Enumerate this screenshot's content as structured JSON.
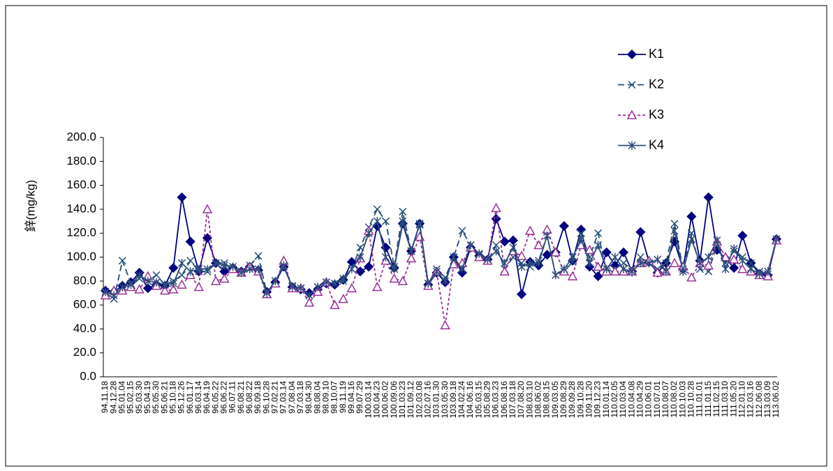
{
  "chart_data": {
    "type": "line",
    "y_label": "鋅(mg/kg)",
    "categories": [
      "94.11.18",
      "94.12.28",
      "95.01.04",
      "95.02.15",
      "95.03.30",
      "95.04.19",
      "95.05.30",
      "95.06.21",
      "95.10.18",
      "95.12.26",
      "96.01.17",
      "96.03.14",
      "96.04.19",
      "96.05.22",
      "96.06.22",
      "96.07.11",
      "96.08.21",
      "96.08.22",
      "96.09.18",
      "96.10.28",
      "97.02.21",
      "97.03.14",
      "97.08.04",
      "97.03.18",
      "98.04.30",
      "98.08.04",
      "98.09.10",
      "98.10.07",
      "98.11.19",
      "99.04.16",
      "99.07.29",
      "100.03.14",
      "100.04.23",
      "100.06.02",
      "100.09.06",
      "101.03.23",
      "101.09.12",
      "102.03.08",
      "102.07.16",
      "103.01.30",
      "103.05.30",
      "103.09.18",
      "104.02.24",
      "104.06.16",
      "105.03.15",
      "105.08.29",
      "106.03.23",
      "106.08.16",
      "107.03.18",
      "107.08.20",
      "108.03.10",
      "108.06.02",
      "108.08.15",
      "109.03.05",
      "109.08.29",
      "109.09.28",
      "109.10.28",
      "109.11.20",
      "109.12.23",
      "110.01.14",
      "110.02.05",
      "110.03.04",
      "110.04.08",
      "110.04.29",
      "110.06.01",
      "110.07.01",
      "110.08.07",
      "110.08.02",
      "110.10.03",
      "110.10.28",
      "111.01.01",
      "111.01.15",
      "111.02.15",
      "111.03.10",
      "111.05.20",
      "112.01.10",
      "112.03.16",
      "112.06.08",
      "113.03.09",
      "113.06.02"
    ],
    "series": [
      {
        "name": "K1",
        "color": "#000080",
        "marker": "diamond",
        "dash": "solid",
        "values": [
          72,
          71,
          76,
          79,
          87,
          74,
          77,
          76,
          91,
          150,
          113,
          88,
          116,
          95,
          88,
          91,
          88,
          92,
          89,
          71,
          79,
          92,
          75,
          73,
          70,
          73,
          78,
          77,
          81,
          96,
          88,
          92,
          126,
          108,
          91,
          128,
          105,
          128,
          77,
          87,
          79,
          100,
          87,
          108,
          101,
          98,
          132,
          113,
          114,
          69,
          96,
          93,
          102,
          104,
          126,
          97,
          123,
          92,
          84,
          104,
          93,
          104,
          88,
          121,
          96,
          87,
          95,
          113,
          90,
          134,
          97,
          150,
          106,
          99,
          91,
          118,
          95,
          86,
          85,
          115
        ]
      },
      {
        "name": "K2",
        "color": "#1f4e79",
        "marker": "x",
        "dash": "long",
        "values": [
          70,
          65,
          97,
          78,
          82,
          80,
          85,
          77,
          80,
          85,
          97,
          88,
          88,
          95,
          95,
          90,
          88,
          93,
          101,
          70,
          80,
          92,
          76,
          74,
          68,
          75,
          79,
          78,
          80,
          90,
          108,
          125,
          140,
          130,
          92,
          138,
          105,
          127,
          78,
          90,
          83,
          100,
          122,
          110,
          102,
          97,
          110,
          90,
          100,
          95,
          92,
          97,
          118,
          85,
          88,
          96,
          120,
          100,
          120,
          88,
          90,
          95,
          90,
          100,
          95,
          90,
          95,
          128,
          90,
          120,
          90,
          88,
          110,
          95,
          105,
          100,
          95,
          88,
          86,
          115
        ]
      },
      {
        "name": "K3",
        "color": "#993399",
        "marker": "triangle",
        "dash": "short",
        "values": [
          68,
          72,
          72,
          75,
          73,
          84,
          76,
          72,
          73,
          77,
          85,
          75,
          140,
          80,
          82,
          90,
          87,
          92,
          88,
          69,
          78,
          97,
          74,
          74,
          62,
          71,
          79,
          60,
          65,
          74,
          99,
          122,
          75,
          97,
          82,
          80,
          99,
          117,
          76,
          88,
          43,
          94,
          95,
          108,
          100,
          97,
          141,
          88,
          105,
          101,
          122,
          110,
          123,
          104,
          88,
          84,
          110,
          106,
          92,
          88,
          88,
          88,
          88,
          95,
          97,
          87,
          88,
          95,
          92,
          83,
          95,
          93,
          113,
          100,
          98,
          90,
          88,
          85,
          84,
          114
        ]
      },
      {
        "name": "K4",
        "color": "#2e4d7b",
        "marker": "star",
        "dash": "solid",
        "values": [
          71,
          68,
          75,
          77,
          85,
          80,
          79,
          77,
          78,
          95,
          88,
          90,
          90,
          95,
          93,
          92,
          87,
          90,
          90,
          70,
          80,
          93,
          75,
          74,
          68,
          75,
          79,
          78,
          82,
          90,
          100,
          120,
          130,
          100,
          90,
          130,
          105,
          128,
          78,
          88,
          80,
          100,
          90,
          110,
          103,
          98,
          105,
          95,
          108,
          92,
          95,
          95,
          118,
          85,
          90,
          100,
          115,
          95,
          110,
          90,
          100,
          90,
          88,
          95,
          95,
          98,
          88,
          122,
          88,
          115,
          95,
          100,
          114,
          90,
          107,
          97,
          90,
          86,
          88,
          115
        ]
      }
    ],
    "ylim": [
      0,
      200
    ],
    "yticks": [
      {
        "value": 0,
        "label": "0.0"
      },
      {
        "value": 20,
        "label": "20.0"
      },
      {
        "value": 40,
        "label": "40.0"
      },
      {
        "value": 60,
        "label": "60.0"
      },
      {
        "value": 80,
        "label": "80.0"
      },
      {
        "value": 100,
        "label": "100.0"
      },
      {
        "value": 120,
        "label": "120.0"
      },
      {
        "value": 140,
        "label": "140.0"
      },
      {
        "value": 160,
        "label": "160.0"
      },
      {
        "value": 180,
        "label": "180.0"
      },
      {
        "value": 200,
        "label": "200.0"
      }
    ],
    "legend": "top-right"
  }
}
